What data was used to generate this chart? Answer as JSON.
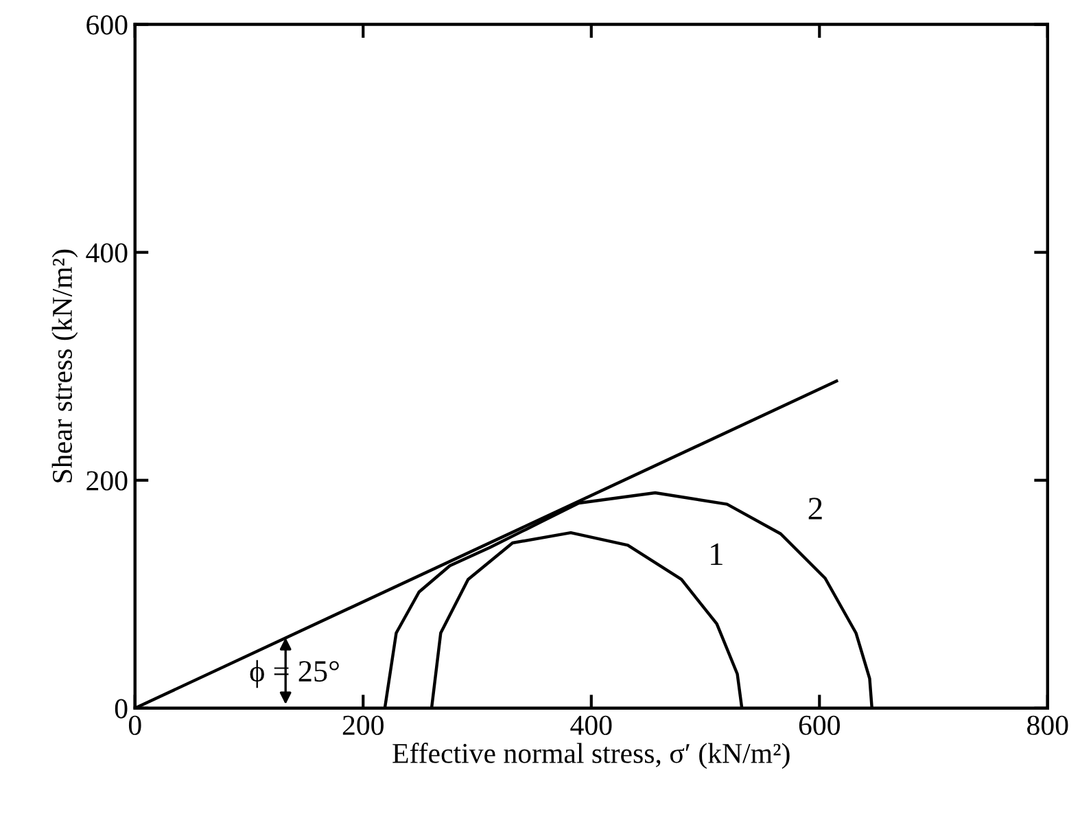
{
  "chart_data": {
    "type": "line",
    "xlabel": "Effective normal stress, σ′ (kN/m²)",
    "ylabel": "Shear stress (kN/m²)",
    "xlim": [
      0,
      800
    ],
    "ylim": [
      0,
      600
    ],
    "xticks": [
      0,
      200,
      400,
      600,
      800
    ],
    "yticks": [
      0,
      200,
      400,
      600
    ],
    "grid": false,
    "legend": false,
    "marker": "none",
    "line_style": "solid",
    "series": [
      {
        "color": "#000000",
        "x": [
          0,
          615
        ],
        "values": [
          0,
          287
        ]
      },
      {
        "name": "1",
        "color": "#000000",
        "x": [
          260,
          268,
          292,
          331,
          382,
          432,
          479,
          510,
          528,
          532
        ],
        "values": [
          0,
          66,
          113,
          145,
          154,
          143,
          113,
          74,
          30,
          0
        ]
      },
      {
        "name": "2",
        "color": "#000000",
        "x": [
          219,
          229,
          249,
          276,
          311,
          343,
          389,
          456,
          519,
          566,
          605,
          632,
          644,
          646
        ],
        "values": [
          0,
          66,
          102,
          125,
          141,
          157,
          180,
          189,
          179,
          153,
          114,
          66,
          26,
          0
        ]
      }
    ],
    "annotations": [
      "ϕ = 25°"
    ]
  }
}
